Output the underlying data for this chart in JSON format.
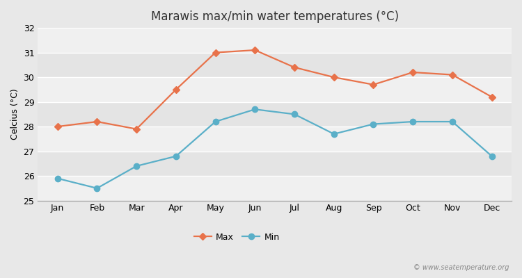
{
  "title": "Marawis max/min water temperatures (°C)",
  "ylabel": "Celcius (°C)",
  "months": [
    "Jan",
    "Feb",
    "Mar",
    "Apr",
    "May",
    "Jun",
    "Jul",
    "Aug",
    "Sep",
    "Oct",
    "Nov",
    "Dec"
  ],
  "max_temps": [
    28.0,
    28.2,
    27.9,
    29.5,
    31.0,
    31.1,
    30.4,
    30.0,
    29.7,
    30.2,
    30.1,
    29.2
  ],
  "min_temps": [
    25.9,
    25.5,
    26.4,
    26.8,
    28.2,
    28.7,
    28.5,
    27.7,
    28.1,
    28.2,
    28.2,
    26.8
  ],
  "max_color": "#e8724a",
  "min_color": "#5aafc8",
  "fig_bg_color": "#e8e8e8",
  "plot_bg_color_light": "#f0f0f0",
  "plot_bg_color_dark": "#e4e4e4",
  "ylim": [
    25,
    32
  ],
  "yticks": [
    25,
    26,
    27,
    28,
    29,
    30,
    31,
    32
  ],
  "grid_color": "#ffffff",
  "watermark": "© www.seatemperature.org",
  "legend_max": "Max",
  "legend_min": "Min",
  "title_fontsize": 12,
  "label_fontsize": 9,
  "tick_fontsize": 9
}
